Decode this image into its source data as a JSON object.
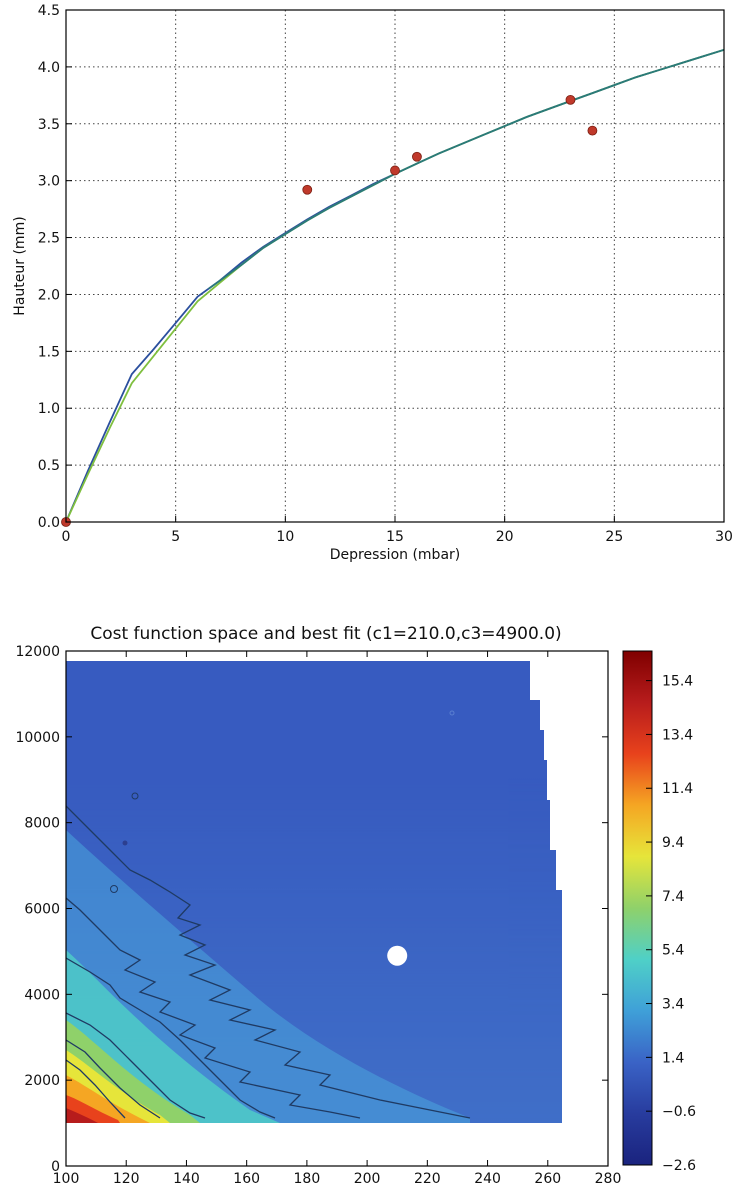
{
  "chart_data": [
    {
      "type": "line",
      "title": "",
      "xlabel": "Depression (mbar)",
      "ylabel": "Hauteur (mm)",
      "xlim": [
        0,
        30
      ],
      "ylim": [
        0.0,
        4.5
      ],
      "xticks": [
        0,
        5,
        10,
        15,
        20,
        25,
        30
      ],
      "yticks": [
        0.0,
        0.5,
        1.0,
        1.5,
        2.0,
        2.5,
        3.0,
        3.5,
        4.0,
        4.5
      ],
      "grid": true,
      "series": [
        {
          "kind": "line",
          "color": "#2b4f9e",
          "x": [
            0,
            1,
            2,
            3,
            4,
            5,
            6,
            7,
            8,
            9,
            10,
            11,
            12,
            13,
            14,
            15,
            16,
            17,
            18,
            19,
            20,
            21,
            22,
            23,
            24,
            25,
            26,
            27,
            28,
            29,
            30
          ],
          "y": [
            0.0,
            0.45,
            0.88,
            1.3,
            1.52,
            1.75,
            1.98,
            2.12,
            2.28,
            2.42,
            2.54,
            2.66,
            2.77,
            2.87,
            2.97,
            3.06,
            3.15,
            3.24,
            3.32,
            3.4,
            3.48,
            3.56,
            3.63,
            3.7,
            3.77,
            3.84,
            3.91,
            3.97,
            4.03,
            4.09,
            4.15
          ]
        },
        {
          "kind": "line",
          "color": "#7fbf3f",
          "x": [
            0,
            1,
            2,
            3,
            4,
            5,
            6,
            7,
            8,
            9,
            10,
            11,
            12,
            13,
            14,
            15,
            16,
            17,
            18,
            19,
            20,
            21,
            22,
            23,
            24,
            25,
            26,
            27,
            28,
            29,
            30
          ],
          "y": [
            0.0,
            0.42,
            0.83,
            1.22,
            1.46,
            1.7,
            1.94,
            2.1,
            2.26,
            2.41,
            2.53,
            2.65,
            2.76,
            2.86,
            2.96,
            3.06,
            3.15,
            3.24,
            3.32,
            3.4,
            3.48,
            3.56,
            3.63,
            3.7,
            3.77,
            3.84,
            3.91,
            3.97,
            4.03,
            4.09,
            4.15
          ]
        },
        {
          "kind": "line",
          "color": "#2a7a7a",
          "x": [
            6.5,
            8,
            9,
            10,
            11,
            12,
            13,
            14,
            15,
            16,
            17,
            18,
            19,
            20,
            21,
            22,
            23,
            24,
            25,
            26,
            27,
            28,
            29,
            30
          ],
          "y": [
            2.05,
            2.26,
            2.41,
            2.53,
            2.65,
            2.76,
            2.86,
            2.96,
            3.06,
            3.15,
            3.24,
            3.32,
            3.4,
            3.48,
            3.56,
            3.63,
            3.7,
            3.77,
            3.84,
            3.91,
            3.97,
            4.03,
            4.09,
            4.15
          ]
        },
        {
          "kind": "scatter",
          "color": "#c0392b",
          "x": [
            0,
            11,
            15,
            16,
            23,
            24
          ],
          "y": [
            0.0,
            2.92,
            3.09,
            3.21,
            3.71,
            3.44
          ]
        }
      ]
    },
    {
      "type": "heatmap",
      "title": "Cost function space and best fit (c1=210.0,c3=4900.0)",
      "xlabel": "",
      "ylabel": "",
      "xlim": [
        100,
        280
      ],
      "ylim": [
        0,
        12000
      ],
      "xticks": [
        100,
        120,
        140,
        160,
        180,
        200,
        220,
        240,
        260,
        280
      ],
      "yticks": [
        0,
        2000,
        4000,
        6000,
        8000,
        10000,
        12000
      ],
      "colorbar_ticks": [
        "15.4",
        "13.4",
        "11.4",
        "9.4",
        "7.4",
        "5.4",
        "3.4",
        "1.4",
        "−0.6",
        "−2.6"
      ],
      "colorbar_range": [
        -2.6,
        16.5
      ],
      "colormap": [
        "#1a237e",
        "#283c9e",
        "#3a63c6",
        "#3fa0d8",
        "#4fd0c7",
        "#8fd16a",
        "#e6e53a",
        "#f5a623",
        "#e8421c",
        "#b71c1c",
        "#7f0000"
      ],
      "contour_levels": [
        1.4,
        3.4,
        5.4,
        7.4,
        9.4
      ],
      "best_fit": {
        "c1": 210.0,
        "c3": 4900.0
      }
    }
  ]
}
